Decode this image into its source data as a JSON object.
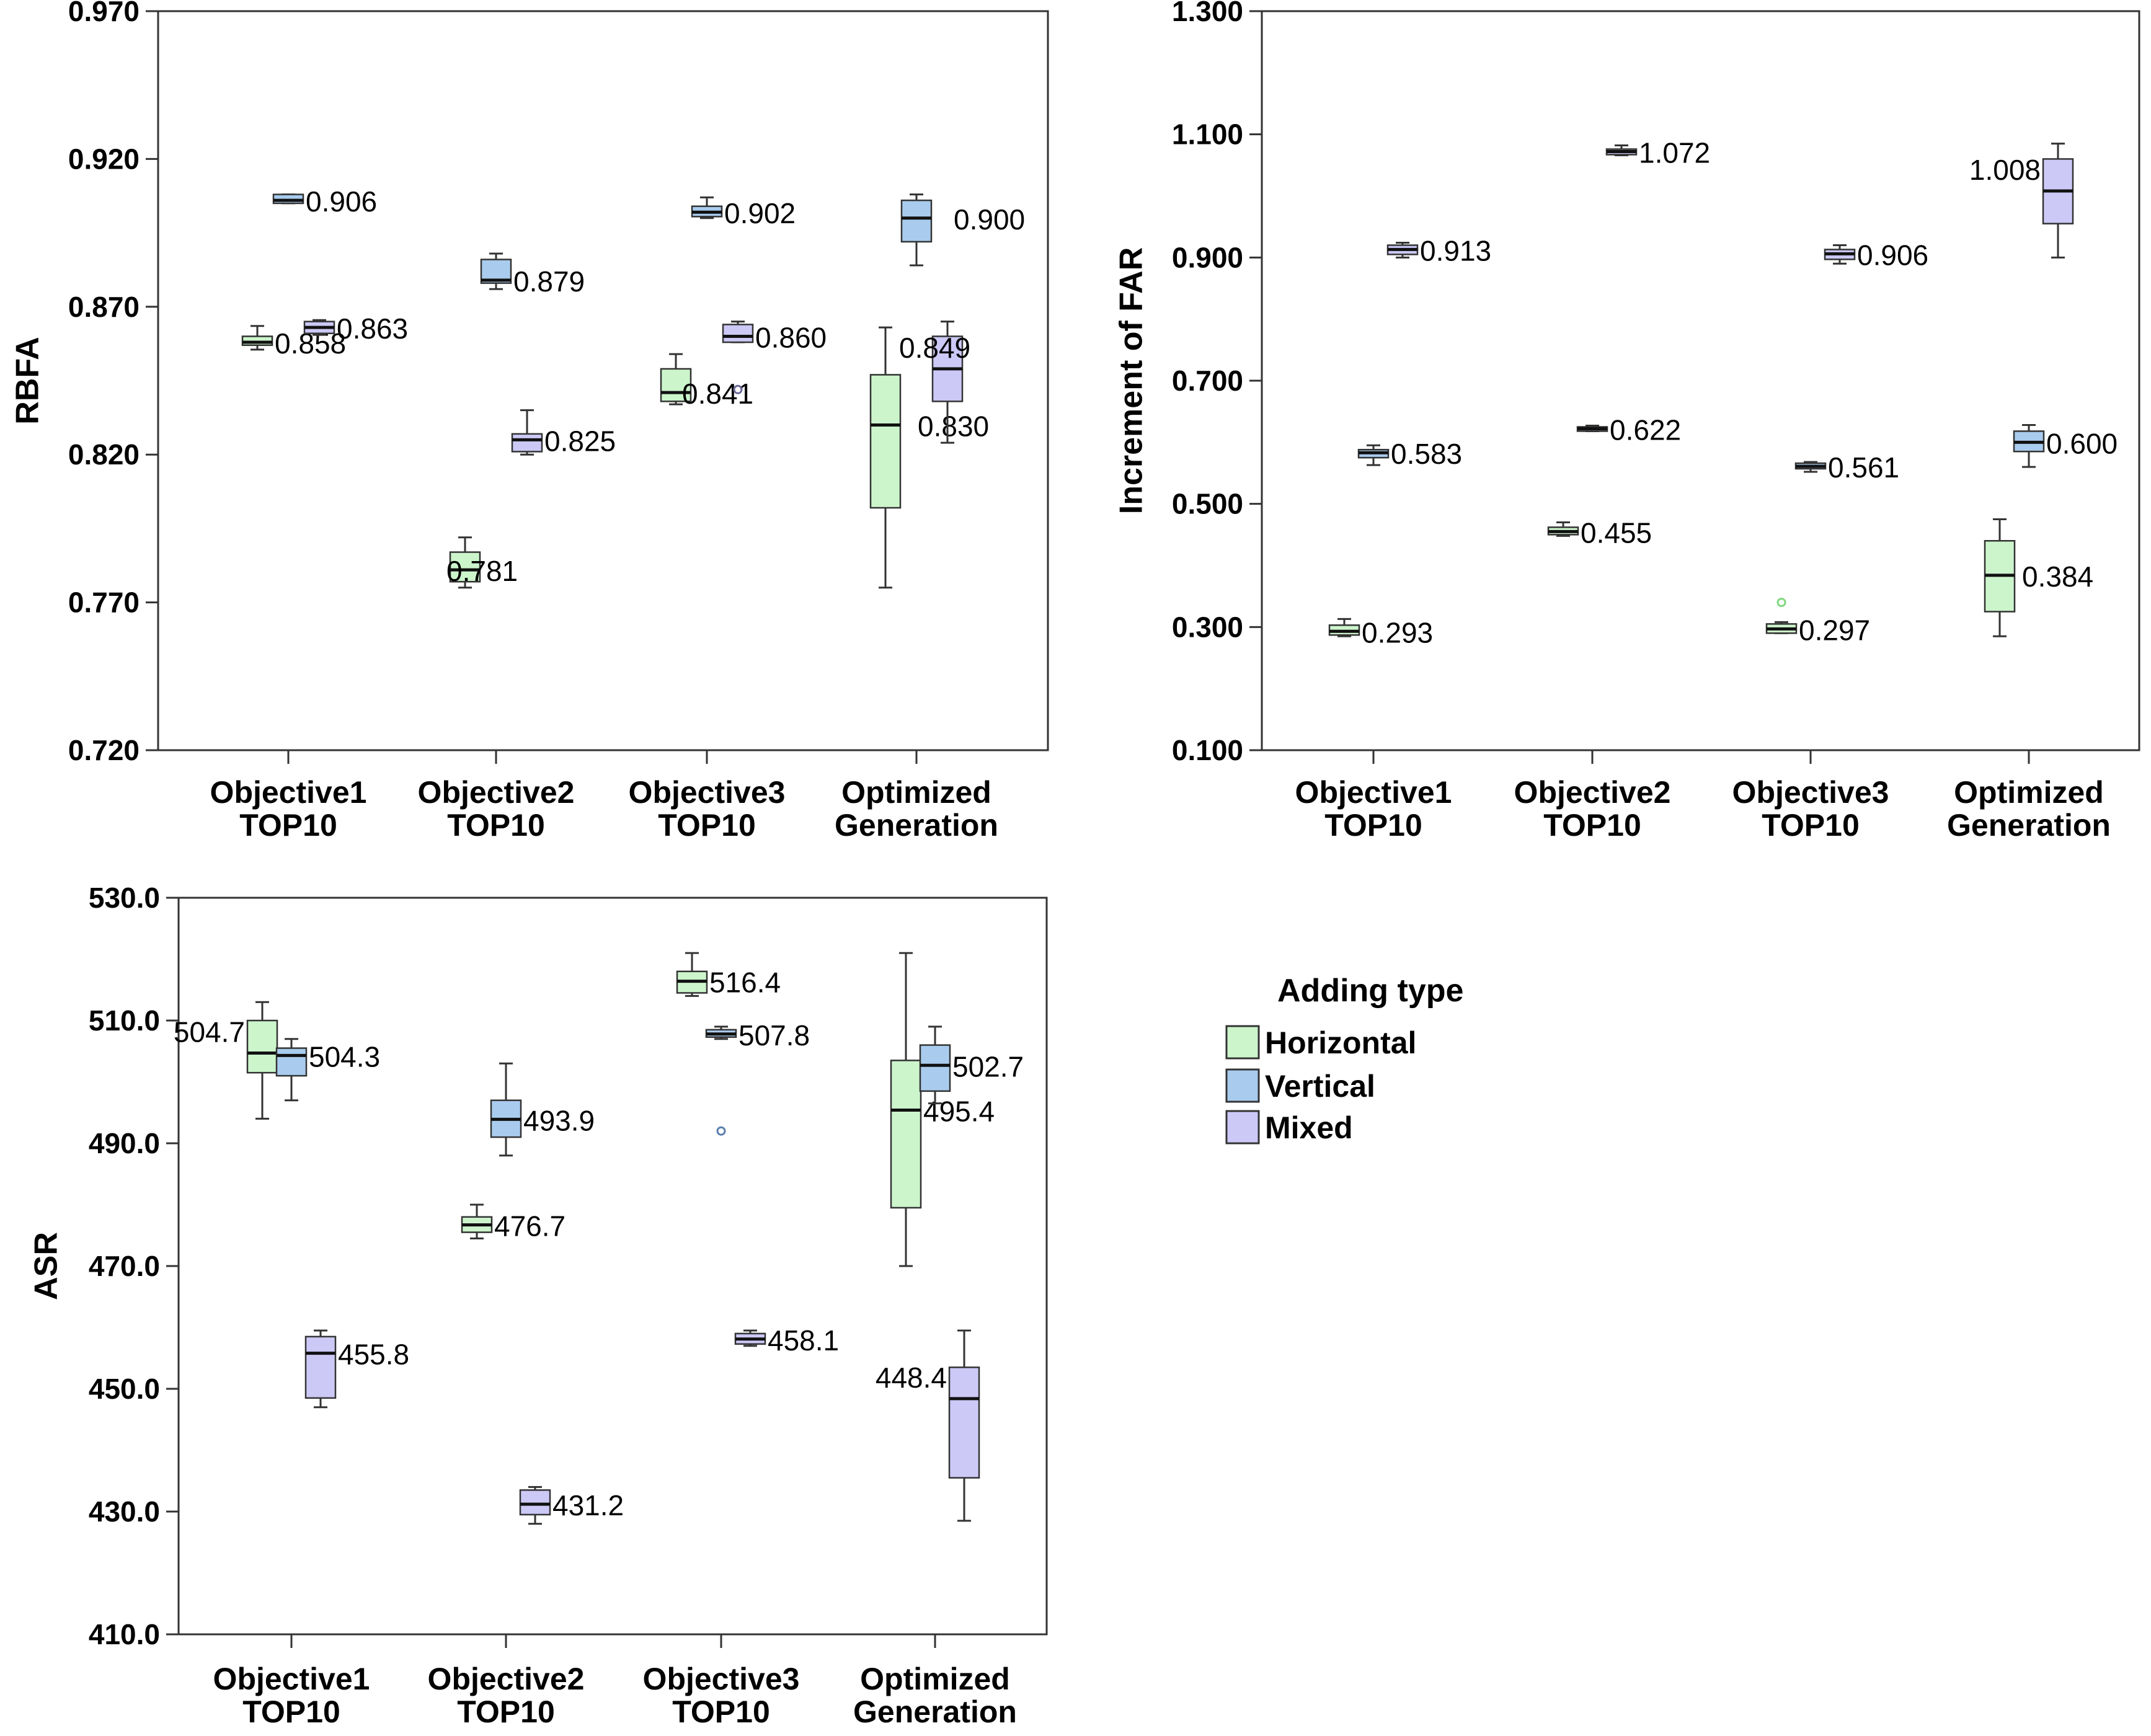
{
  "legend": {
    "title": "Adding type",
    "items": [
      {
        "name": "Horizontal",
        "color": "#CCF5CC"
      },
      {
        "name": "Vertical",
        "color": "#A9CCEE"
      },
      {
        "name": "Mixed",
        "color": "#CCC9F7"
      }
    ]
  },
  "chart_data": [
    {
      "type": "boxplot",
      "ylabel": "RBFA",
      "ylim": [
        0.72,
        0.97
      ],
      "yticks": [
        "0.720",
        "0.770",
        "0.820",
        "0.870",
        "0.920",
        "0.970"
      ],
      "categories": [
        [
          "Objective1",
          "TOP10"
        ],
        [
          "Objective2",
          "TOP10"
        ],
        [
          "Objective3",
          "TOP10"
        ],
        [
          "Optimized",
          "Generation"
        ]
      ],
      "series": [
        {
          "name": "Horizontal",
          "boxes": [
            {
              "min": 0.8555,
              "q1": 0.857,
              "median": 0.858,
              "q3": 0.86,
              "max": 0.8635,
              "label": "0.858"
            },
            {
              "min": 0.775,
              "q1": 0.777,
              "median": 0.781,
              "q3": 0.787,
              "max": 0.792,
              "label": "0.781"
            },
            {
              "min": 0.837,
              "q1": 0.838,
              "median": 0.841,
              "q3": 0.849,
              "max": 0.854,
              "label": "0.841"
            },
            {
              "min": 0.775,
              "q1": 0.802,
              "median": 0.83,
              "q3": 0.847,
              "max": 0.863,
              "label": "0.830"
            }
          ]
        },
        {
          "name": "Vertical",
          "boxes": [
            {
              "min": 0.905,
              "q1": 0.905,
              "median": 0.906,
              "q3": 0.908,
              "max": 0.908,
              "label": "0.906"
            },
            {
              "min": 0.876,
              "q1": 0.878,
              "median": 0.879,
              "q3": 0.886,
              "max": 0.888,
              "label": "0.879"
            },
            {
              "min": 0.9,
              "q1": 0.9005,
              "median": 0.902,
              "q3": 0.904,
              "max": 0.907,
              "label": "0.902"
            },
            {
              "min": 0.884,
              "q1": 0.892,
              "median": 0.9,
              "q3": 0.906,
              "max": 0.908,
              "label": "0.900"
            }
          ]
        },
        {
          "name": "Mixed",
          "boxes": [
            {
              "min": 0.8605,
              "q1": 0.861,
              "median": 0.863,
              "q3": 0.865,
              "max": 0.8655,
              "label": "0.863"
            },
            {
              "min": 0.82,
              "q1": 0.821,
              "median": 0.825,
              "q3": 0.827,
              "max": 0.835,
              "label": "0.825"
            },
            {
              "min": 0.858,
              "q1": 0.858,
              "median": 0.86,
              "q3": 0.864,
              "max": 0.865,
              "outliers": [
                0.842
              ],
              "label": "0.860"
            },
            {
              "min": 0.824,
              "q1": 0.838,
              "median": 0.849,
              "q3": 0.86,
              "max": 0.865,
              "label": "0.849"
            }
          ]
        }
      ]
    },
    {
      "type": "boxplot",
      "ylabel": "Increment of FAR",
      "ylim": [
        0.1,
        1.3
      ],
      "yticks": [
        "0.100",
        "0.300",
        "0.500",
        "0.700",
        "0.900",
        "1.100",
        "1.300"
      ],
      "categories": [
        [
          "Objective1",
          "TOP10"
        ],
        [
          "Objective2",
          "TOP10"
        ],
        [
          "Objective3",
          "TOP10"
        ],
        [
          "Optimized",
          "Generation"
        ]
      ],
      "series": [
        {
          "name": "Horizontal",
          "boxes": [
            {
              "min": 0.285,
              "q1": 0.287,
              "median": 0.293,
              "q3": 0.303,
              "max": 0.313,
              "label": "0.293"
            },
            {
              "min": 0.448,
              "q1": 0.45,
              "median": 0.455,
              "q3": 0.462,
              "max": 0.47,
              "label": "0.455"
            },
            {
              "min": 0.29,
              "q1": 0.29,
              "median": 0.297,
              "q3": 0.305,
              "max": 0.308,
              "outliers": [
                0.34
              ],
              "label": "0.297"
            },
            {
              "min": 0.285,
              "q1": 0.325,
              "median": 0.384,
              "q3": 0.44,
              "max": 0.475,
              "label": "0.384"
            }
          ]
        },
        {
          "name": "Vertical",
          "boxes": [
            {
              "min": 0.563,
              "q1": 0.575,
              "median": 0.583,
              "q3": 0.588,
              "max": 0.595,
              "label": "0.583"
            },
            {
              "min": 0.618,
              "q1": 0.618,
              "median": 0.622,
              "q3": 0.625,
              "max": 0.627,
              "label": "0.622"
            },
            {
              "min": 0.552,
              "q1": 0.557,
              "median": 0.561,
              "q3": 0.566,
              "max": 0.568,
              "label": "0.561"
            },
            {
              "min": 0.56,
              "q1": 0.585,
              "median": 0.6,
              "q3": 0.618,
              "max": 0.628,
              "label": "0.600"
            }
          ]
        },
        {
          "name": "Mixed",
          "boxes": [
            {
              "min": 0.9,
              "q1": 0.905,
              "median": 0.913,
              "q3": 0.92,
              "max": 0.924,
              "label": "0.913"
            },
            {
              "min": 1.066,
              "q1": 1.067,
              "median": 1.072,
              "q3": 1.076,
              "max": 1.082,
              "label": "1.072"
            },
            {
              "min": 0.89,
              "q1": 0.897,
              "median": 0.906,
              "q3": 0.913,
              "max": 0.92,
              "label": "0.906"
            },
            {
              "min": 0.9,
              "q1": 0.955,
              "median": 1.008,
              "q3": 1.06,
              "max": 1.085,
              "label": "1.008"
            }
          ]
        }
      ]
    },
    {
      "type": "boxplot",
      "ylabel": "ASR",
      "ylim": [
        410,
        530
      ],
      "yticks": [
        "410.0",
        "430.0",
        "450.0",
        "470.0",
        "490.0",
        "510.0",
        "530.0"
      ],
      "categories": [
        [
          "Objective1",
          "TOP10"
        ],
        [
          "Objective2",
          "TOP10"
        ],
        [
          "Objective3",
          "TOP10"
        ],
        [
          "Optimized",
          "Generation"
        ]
      ],
      "series": [
        {
          "name": "Horizontal",
          "boxes": [
            {
              "min": 494,
              "q1": 501.5,
              "median": 504.7,
              "q3": 510,
              "max": 513,
              "label": "504.7"
            },
            {
              "min": 474.5,
              "q1": 475.5,
              "median": 476.7,
              "q3": 478,
              "max": 480,
              "label": "476.7"
            },
            {
              "min": 514,
              "q1": 514.5,
              "median": 516.4,
              "q3": 518,
              "max": 521,
              "label": "516.4"
            },
            {
              "min": 470,
              "q1": 479.5,
              "median": 495.4,
              "q3": 503.5,
              "max": 521,
              "label": "495.4"
            }
          ]
        },
        {
          "name": "Vertical",
          "boxes": [
            {
              "min": 497,
              "q1": 501,
              "median": 504.3,
              "q3": 505.5,
              "max": 507,
              "label": "504.3"
            },
            {
              "min": 488,
              "q1": 491,
              "median": 493.9,
              "q3": 497,
              "max": 503,
              "label": "493.9"
            },
            {
              "min": 507,
              "q1": 507.3,
              "median": 507.8,
              "q3": 508.5,
              "max": 509,
              "outliers": [
                492
              ],
              "label": "507.8"
            },
            {
              "min": 496.5,
              "q1": 498.5,
              "median": 502.7,
              "q3": 506,
              "max": 509,
              "label": "502.7"
            }
          ]
        },
        {
          "name": "Mixed",
          "boxes": [
            {
              "min": 447,
              "q1": 448.5,
              "median": 455.8,
              "q3": 458.5,
              "max": 459.5,
              "label": "455.8"
            },
            {
              "min": 428,
              "q1": 429.5,
              "median": 431.2,
              "q3": 433.5,
              "max": 434,
              "label": "431.2"
            },
            {
              "min": 457,
              "q1": 457.3,
              "median": 458.1,
              "q3": 459,
              "max": 459.5,
              "label": "458.1"
            },
            {
              "min": 428.5,
              "q1": 435.5,
              "median": 448.4,
              "q3": 453.5,
              "max": 459.5,
              "label": "448.4"
            }
          ]
        }
      ]
    }
  ]
}
